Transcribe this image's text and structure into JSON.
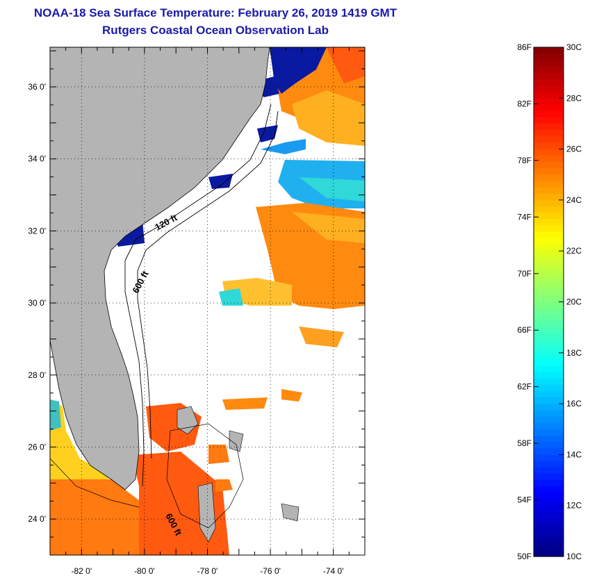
{
  "header": {
    "title": "NOAA-18 Sea Surface Temperature:  February 26, 2019 1419 GMT",
    "subtitle": "Rutgers Coastal Ocean Observation Lab"
  },
  "map": {
    "lat_ticks": [
      {
        "value": 36,
        "label": "36 0'"
      },
      {
        "value": 34,
        "label": "34 0'"
      },
      {
        "value": 32,
        "label": "32 0'"
      },
      {
        "value": 30,
        "label": "30 0'"
      },
      {
        "value": 28,
        "label": "28 0'"
      },
      {
        "value": 26,
        "label": "26 0'"
      },
      {
        "value": 24,
        "label": "24 0'"
      }
    ],
    "lon_ticks": [
      {
        "value": -82,
        "label": "-82 0'"
      },
      {
        "value": -80,
        "label": "-80 0'"
      },
      {
        "value": -78,
        "label": "-78 0'"
      },
      {
        "value": -76,
        "label": "-76 0'"
      },
      {
        "value": -74,
        "label": "-74 0'"
      }
    ],
    "lat_range": [
      23,
      37.1
    ],
    "lon_range": [
      -83,
      -73
    ],
    "contour_labels": [
      "120 ft",
      "600 ft",
      "600 ft"
    ],
    "land_color": "#b4b4b4"
  },
  "colorbar": {
    "min_c": 10,
    "max_c": 30,
    "fahrenheit_labels": [
      "86F",
      "82F",
      "78F",
      "74F",
      "70F",
      "66F",
      "62F",
      "58F",
      "54F",
      "50F"
    ],
    "celsius_labels": [
      "30C",
      "28C",
      "26C",
      "24C",
      "22C",
      "20C",
      "18C",
      "16C",
      "14C",
      "12C",
      "10C"
    ]
  }
}
